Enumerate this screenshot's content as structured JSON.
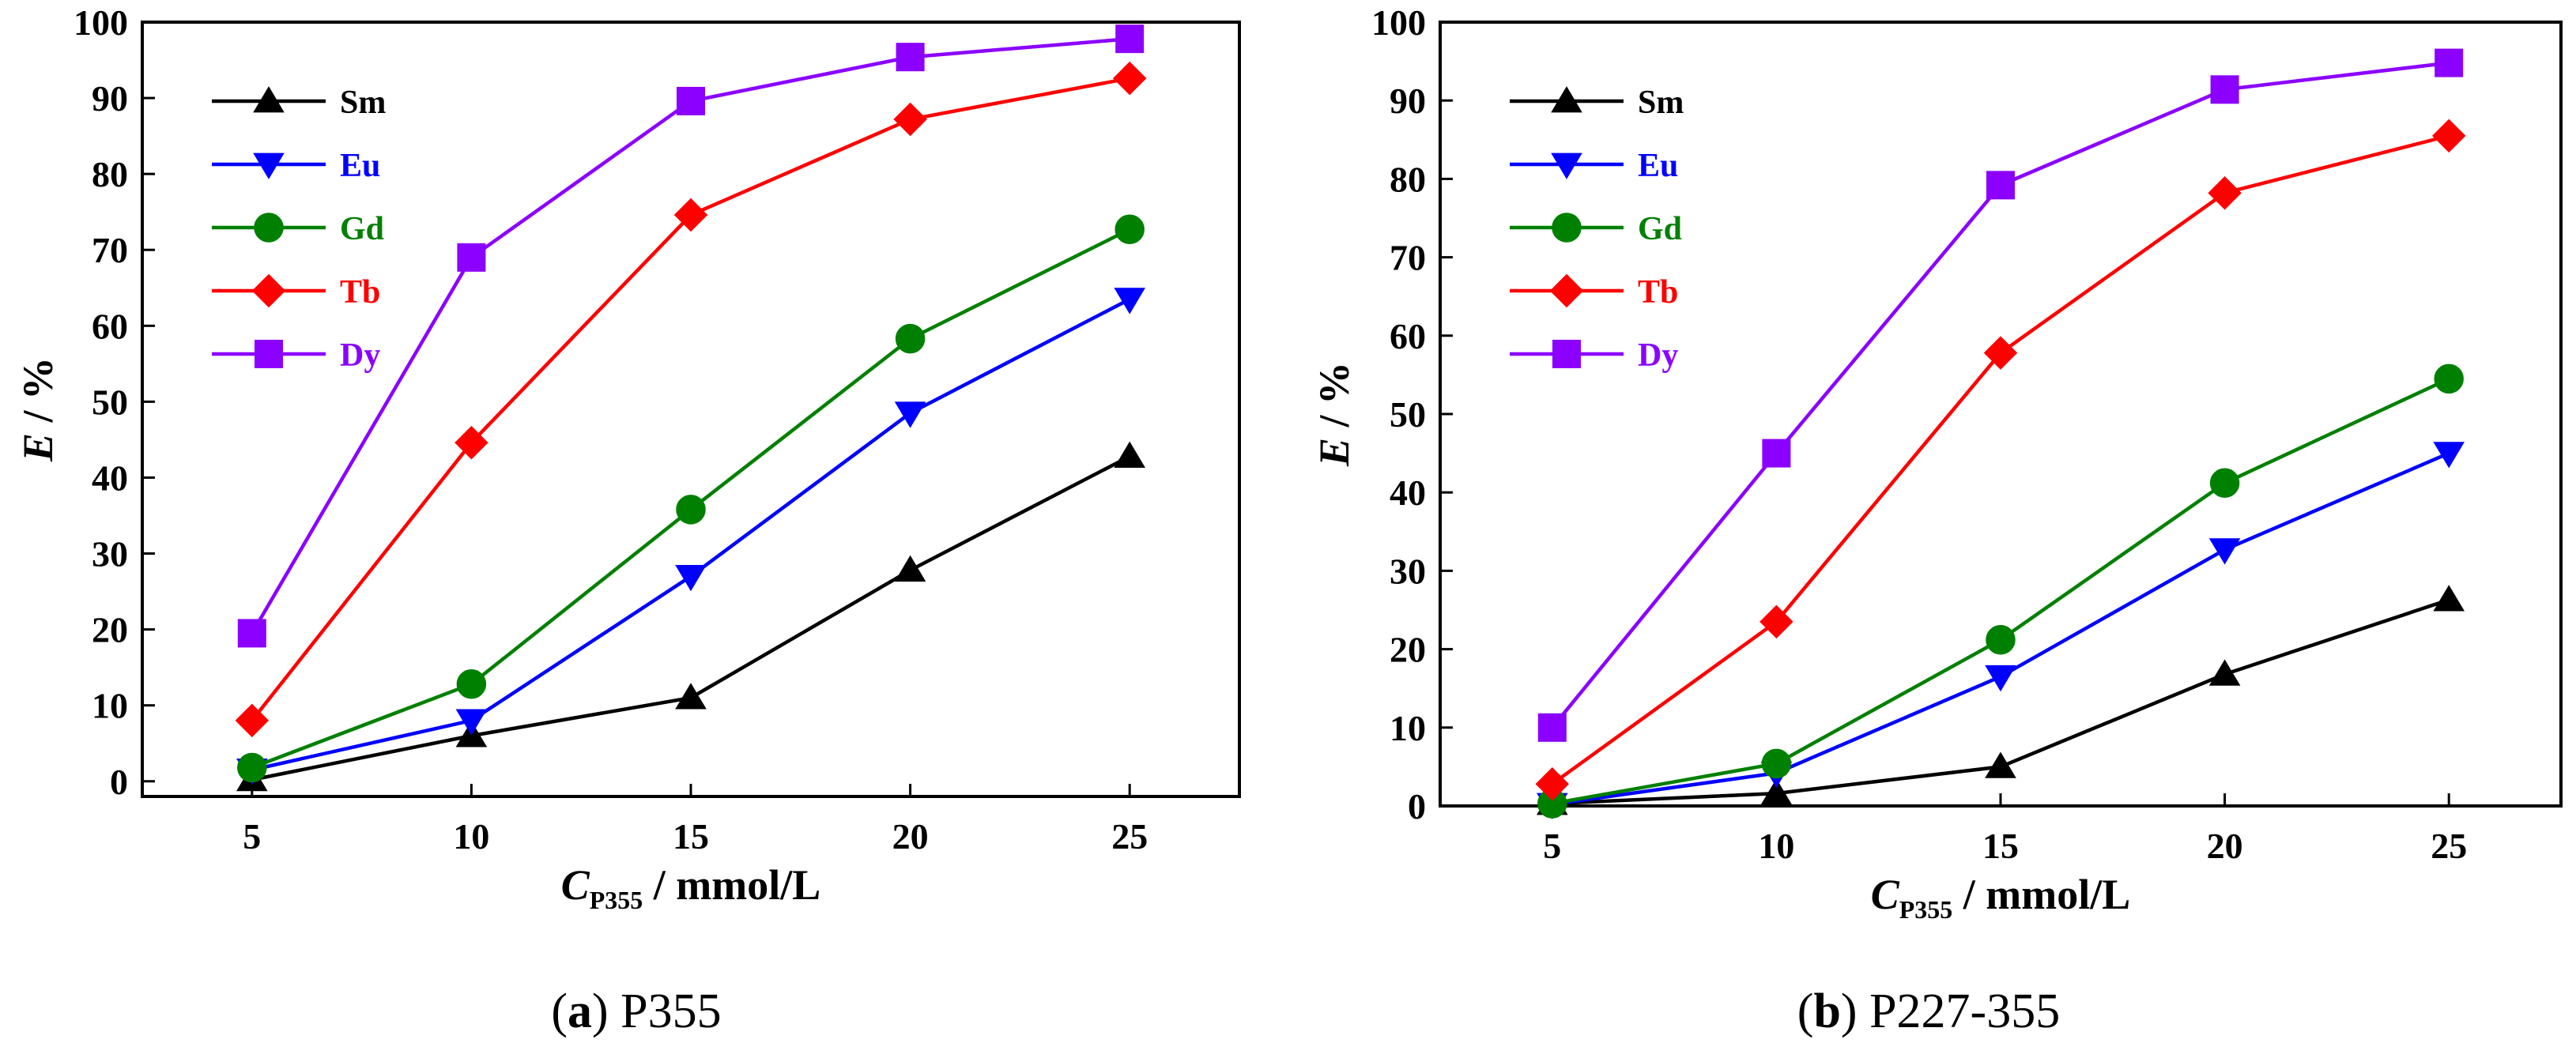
{
  "chart_data": [
    {
      "type": "line",
      "panel_label": "a",
      "caption": "P355",
      "x": [
        5,
        10,
        15,
        20,
        25
      ],
      "xticks": [
        "5",
        "10",
        "15",
        "20",
        "25"
      ],
      "xlim": [
        2.5,
        27.5
      ],
      "ylim": [
        -2,
        100
      ],
      "yticks": [
        "0",
        "10",
        "20",
        "30",
        "40",
        "50",
        "60",
        "70",
        "80",
        "90",
        "100"
      ],
      "ylabel": {
        "italic": "E",
        "rest": " / %"
      },
      "xlabel": {
        "italic": "C",
        "sub": "P355",
        "rest": " / mmol/L"
      },
      "series": [
        {
          "name": "Sm",
          "color": "#000000",
          "marker": "triangle-up",
          "values": [
            0.2,
            6,
            11,
            27.8,
            42.8
          ]
        },
        {
          "name": "Eu",
          "color": "#0000ff",
          "marker": "triangle-down",
          "values": [
            1.5,
            8,
            27,
            48.5,
            63.5
          ]
        },
        {
          "name": "Gd",
          "color": "#008000",
          "marker": "circle",
          "values": [
            1.8,
            12.8,
            35.8,
            58.3,
            72.7
          ]
        },
        {
          "name": "Tb",
          "color": "#ff0000",
          "marker": "diamond",
          "values": [
            8,
            44.6,
            74.6,
            87.2,
            92.6
          ]
        },
        {
          "name": "Dy",
          "color": "#8b00ff",
          "marker": "square",
          "values": [
            19.5,
            69,
            89.6,
            95.4,
            97.8
          ]
        }
      ]
    },
    {
      "type": "line",
      "panel_label": "b",
      "caption": "P227-355",
      "x": [
        5,
        10,
        15,
        20,
        25
      ],
      "xticks": [
        "5",
        "10",
        "15",
        "20",
        "25"
      ],
      "xlim": [
        2.5,
        27.5
      ],
      "ylim": [
        0,
        100
      ],
      "yticks": [
        "0",
        "10",
        "20",
        "30",
        "40",
        "50",
        "60",
        "70",
        "80",
        "90",
        "100"
      ],
      "ylabel": {
        "italic": "E",
        "rest": " / %"
      },
      "xlabel": {
        "italic": "C",
        "sub": "P355",
        "rest": " / mmol/L"
      },
      "series": [
        {
          "name": "Sm",
          "color": "#000000",
          "marker": "triangle-up",
          "values": [
            0.3,
            1.6,
            5,
            16.8,
            26.3
          ]
        },
        {
          "name": "Eu",
          "color": "#0000ff",
          "marker": "triangle-down",
          "values": [
            0.2,
            4.2,
            16.5,
            32.7,
            45
          ]
        },
        {
          "name": "Gd",
          "color": "#008000",
          "marker": "circle",
          "values": [
            0.3,
            5.4,
            21.2,
            41.2,
            54.5
          ]
        },
        {
          "name": "Tb",
          "color": "#ff0000",
          "marker": "diamond",
          "values": [
            2.8,
            23.5,
            57.8,
            78.2,
            85.5
          ]
        },
        {
          "name": "Dy",
          "color": "#8b00ff",
          "marker": "square",
          "values": [
            10,
            45,
            79.2,
            91.4,
            94.8
          ]
        }
      ]
    }
  ]
}
